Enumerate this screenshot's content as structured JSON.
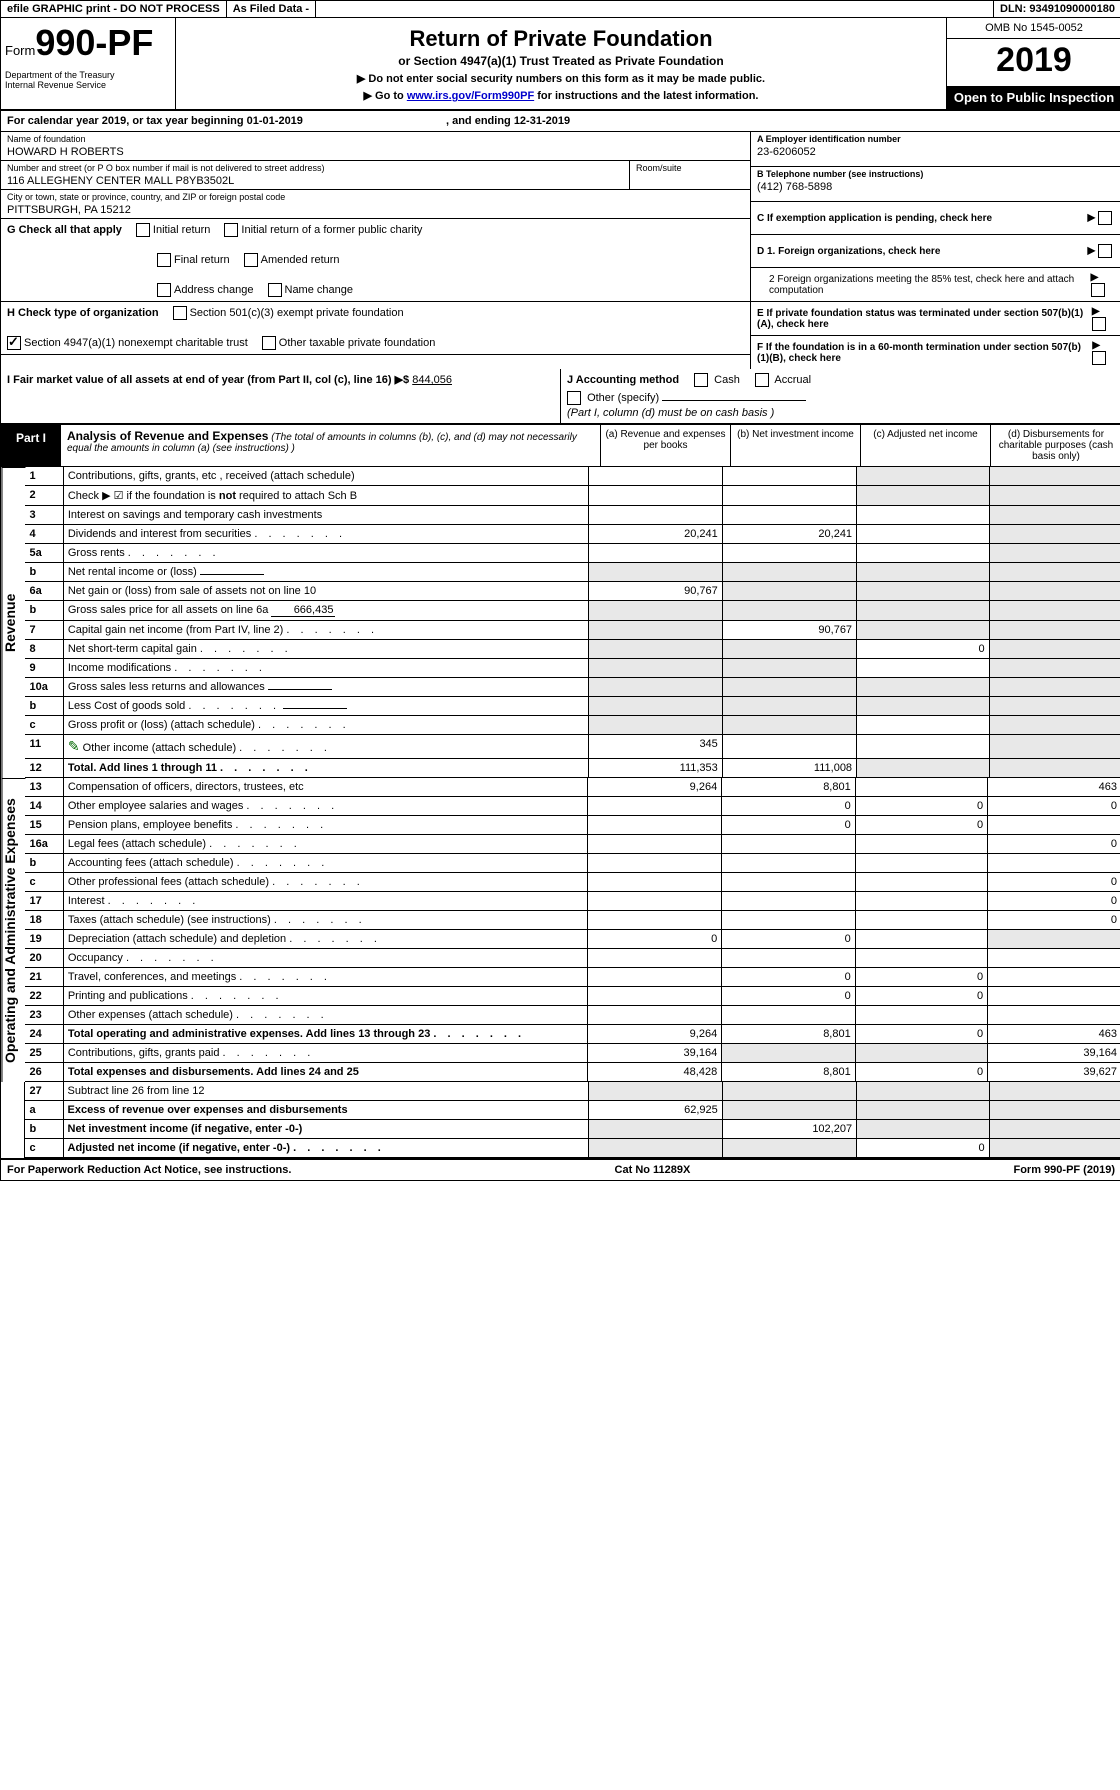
{
  "topbar": {
    "efile": "efile GRAPHIC print - DO NOT PROCESS",
    "asfiled": "As Filed Data -",
    "dln": "DLN: 93491090000180"
  },
  "header": {
    "form_prefix": "Form",
    "form_number": "990-PF",
    "dept": "Department of the Treasury\nInternal Revenue Service",
    "title": "Return of Private Foundation",
    "subtitle": "or Section 4947(a)(1) Trust Treated as Private Foundation",
    "instr1": "▶ Do not enter social security numbers on this form as it may be made public.",
    "instr2_pre": "▶ Go to ",
    "instr2_link": "www.irs.gov/Form990PF",
    "instr2_post": " for instructions and the latest information.",
    "omb": "OMB No 1545-0052",
    "year": "2019",
    "open": "Open to Public Inspection"
  },
  "cal": {
    "line": "For calendar year 2019, or tax year beginning 01-01-2019",
    "ending": ", and ending 12-31-2019"
  },
  "info": {
    "name_label": "Name of foundation",
    "name": "HOWARD H ROBERTS",
    "addr_label": "Number and street (or P O  box number if mail is not delivered to street address)",
    "addr": "116 ALLEGHENY CENTER MALL P8YB3502L",
    "room_label": "Room/suite",
    "city_label": "City or town, state or province, country, and ZIP or foreign postal code",
    "city": "PITTSBURGH, PA  15212",
    "a_label": "A Employer identification number",
    "a_value": "23-6206052",
    "b_label": "B Telephone number (see instructions)",
    "b_value": "(412) 768-5898",
    "c_label": "C If exemption application is pending, check here",
    "d1": "D 1. Foreign organizations, check here",
    "d2": "2 Foreign organizations meeting the 85% test, check here and attach computation",
    "e": "E  If private foundation status was terminated under section 507(b)(1)(A), check here",
    "f": "F  If the foundation is in a 60-month termination under section 507(b)(1)(B), check here"
  },
  "g": {
    "label": "G Check all that apply",
    "opts": [
      "Initial return",
      "Initial return of a former public charity",
      "Final return",
      "Amended return",
      "Address change",
      "Name change"
    ]
  },
  "h": {
    "label": "H Check type of organization",
    "opt1": "Section 501(c)(3) exempt private foundation",
    "opt2": "Section 4947(a)(1) nonexempt charitable trust",
    "opt3": "Other taxable private foundation"
  },
  "i": {
    "label": "I Fair market value of all assets at end of year (from Part II, col (c), line 16) ▶$",
    "value": "844,056"
  },
  "j": {
    "label": "J Accounting method",
    "cash": "Cash",
    "accrual": "Accrual",
    "other": "Other (specify)",
    "note": "(Part I, column (d) must be on cash basis )"
  },
  "part1": {
    "label": "Part I",
    "title": "Analysis of Revenue and Expenses",
    "desc": "(The total of amounts in columns (b), (c), and (d) may not necessarily equal the amounts in column (a) (see instructions) )",
    "col_a": "(a)   Revenue and expenses per books",
    "col_b": "(b)  Net investment income",
    "col_c": "(c)  Adjusted net income",
    "col_d": "(d)  Disbursements for charitable purposes (cash basis only)"
  },
  "side": {
    "revenue": "Revenue",
    "expenses": "Operating and Administrative Expenses"
  },
  "rows": [
    {
      "n": "1",
      "d": "Contributions, gifts, grants, etc , received (attach schedule)",
      "a": "",
      "b": "",
      "c": "",
      "dd": "",
      "cs": true,
      "ds": true
    },
    {
      "n": "2",
      "d": "Check ▶ ☑ if the foundation is not required to attach Sch B",
      "a": "",
      "b": "",
      "c": "",
      "dd": "",
      "cs": true,
      "ds": true,
      "bold_not": true
    },
    {
      "n": "3",
      "d": "Interest on savings and temporary cash investments",
      "a": "",
      "b": "",
      "c": "",
      "dd": "",
      "ds": true
    },
    {
      "n": "4",
      "d": "Dividends and interest from securities",
      "a": "20,241",
      "b": "20,241",
      "c": "",
      "dd": "",
      "ds": true,
      "dots": true
    },
    {
      "n": "5a",
      "d": "Gross rents",
      "a": "",
      "b": "",
      "c": "",
      "dd": "",
      "ds": true,
      "dots": true
    },
    {
      "n": "b",
      "d": "Net rental income or (loss)",
      "a": "",
      "b": "",
      "c": "",
      "dd": "",
      "as": true,
      "bs": true,
      "cs": true,
      "ds": true,
      "inline": true
    },
    {
      "n": "6a",
      "d": "Net gain or (loss) from sale of assets not on line 10",
      "a": "90,767",
      "b": "",
      "c": "",
      "dd": "",
      "bs": true,
      "cs": true,
      "ds": true
    },
    {
      "n": "b",
      "d": "Gross sales price for all assets on line 6a",
      "a": "",
      "b": "",
      "c": "",
      "dd": "",
      "as": true,
      "bs": true,
      "cs": true,
      "ds": true,
      "inline": true,
      "inline_val": "666,435"
    },
    {
      "n": "7",
      "d": "Capital gain net income (from Part IV, line 2)",
      "a": "",
      "b": "90,767",
      "c": "",
      "dd": "",
      "as": true,
      "cs": true,
      "ds": true,
      "dots": true
    },
    {
      "n": "8",
      "d": "Net short-term capital gain",
      "a": "",
      "b": "",
      "c": "0",
      "dd": "",
      "as": true,
      "bs": true,
      "ds": true,
      "dots": true
    },
    {
      "n": "9",
      "d": "Income modifications",
      "a": "",
      "b": "",
      "c": "",
      "dd": "",
      "as": true,
      "bs": true,
      "ds": true,
      "dots": true
    },
    {
      "n": "10a",
      "d": "Gross sales less returns and allowances",
      "a": "",
      "b": "",
      "c": "",
      "dd": "",
      "as": true,
      "bs": true,
      "cs": true,
      "ds": true,
      "inline": true
    },
    {
      "n": "b",
      "d": "Less  Cost of goods sold",
      "a": "",
      "b": "",
      "c": "",
      "dd": "",
      "as": true,
      "bs": true,
      "cs": true,
      "ds": true,
      "inline": true,
      "dots": true
    },
    {
      "n": "c",
      "d": "Gross profit or (loss) (attach schedule)",
      "a": "",
      "b": "",
      "c": "",
      "dd": "",
      "as": true,
      "bs": true,
      "ds": true,
      "dots": true
    },
    {
      "n": "11",
      "d": "Other income (attach schedule)",
      "a": "345",
      "b": "",
      "c": "",
      "dd": "",
      "ds": true,
      "dots": true,
      "icon": true
    },
    {
      "n": "12",
      "d": "Total. Add lines 1 through 11",
      "a": "111,353",
      "b": "111,008",
      "c": "",
      "dd": "",
      "ds": true,
      "cs": true,
      "bold": true,
      "dots": true
    }
  ],
  "exp_rows": [
    {
      "n": "13",
      "d": "Compensation of officers, directors, trustees, etc",
      "a": "9,264",
      "b": "8,801",
      "c": "",
      "dd": "463"
    },
    {
      "n": "14",
      "d": "Other employee salaries and wages",
      "a": "",
      "b": "0",
      "c": "0",
      "dd": "0",
      "dots": true
    },
    {
      "n": "15",
      "d": "Pension plans, employee benefits",
      "a": "",
      "b": "0",
      "c": "0",
      "dd": "",
      "dots": true
    },
    {
      "n": "16a",
      "d": "Legal fees (attach schedule)",
      "a": "",
      "b": "",
      "c": "",
      "dd": "0",
      "dots": true
    },
    {
      "n": "b",
      "d": "Accounting fees (attach schedule)",
      "a": "",
      "b": "",
      "c": "",
      "dd": "",
      "dots": true
    },
    {
      "n": "c",
      "d": "Other professional fees (attach schedule)",
      "a": "",
      "b": "",
      "c": "",
      "dd": "0",
      "dots": true
    },
    {
      "n": "17",
      "d": "Interest",
      "a": "",
      "b": "",
      "c": "",
      "dd": "0",
      "dots": true
    },
    {
      "n": "18",
      "d": "Taxes (attach schedule) (see instructions)",
      "a": "",
      "b": "",
      "c": "",
      "dd": "0",
      "dots": true
    },
    {
      "n": "19",
      "d": "Depreciation (attach schedule) and depletion",
      "a": "0",
      "b": "0",
      "c": "",
      "dd": "",
      "ds": true,
      "dots": true
    },
    {
      "n": "20",
      "d": "Occupancy",
      "a": "",
      "b": "",
      "c": "",
      "dd": "",
      "dots": true
    },
    {
      "n": "21",
      "d": "Travel, conferences, and meetings",
      "a": "",
      "b": "0",
      "c": "0",
      "dd": "",
      "dots": true
    },
    {
      "n": "22",
      "d": "Printing and publications",
      "a": "",
      "b": "0",
      "c": "0",
      "dd": "",
      "dots": true
    },
    {
      "n": "23",
      "d": "Other expenses (attach schedule)",
      "a": "",
      "b": "",
      "c": "",
      "dd": "",
      "dots": true
    },
    {
      "n": "24",
      "d": "Total operating and administrative expenses. Add lines 13 through 23",
      "a": "9,264",
      "b": "8,801",
      "c": "0",
      "dd": "463",
      "bold": true,
      "dots": true
    },
    {
      "n": "25",
      "d": "Contributions, gifts, grants paid",
      "a": "39,164",
      "b": "",
      "c": "",
      "dd": "39,164",
      "bs": true,
      "cs": true,
      "dots": true
    },
    {
      "n": "26",
      "d": "Total expenses and disbursements. Add lines 24 and 25",
      "a": "48,428",
      "b": "8,801",
      "c": "0",
      "dd": "39,627",
      "bold": true
    }
  ],
  "net_rows": [
    {
      "n": "27",
      "d": "Subtract line 26 from line 12",
      "a": "",
      "b": "",
      "c": "",
      "dd": "",
      "as": true,
      "bs": true,
      "cs": true,
      "ds": true
    },
    {
      "n": "a",
      "d": "Excess of revenue over expenses and disbursements",
      "a": "62,925",
      "b": "",
      "c": "",
      "dd": "",
      "bs": true,
      "cs": true,
      "ds": true,
      "bold": true
    },
    {
      "n": "b",
      "d": "Net investment income (if negative, enter -0-)",
      "a": "",
      "b": "102,207",
      "c": "",
      "dd": "",
      "as": true,
      "cs": true,
      "ds": true,
      "bold": true
    },
    {
      "n": "c",
      "d": "Adjusted net income (if negative, enter -0-)",
      "a": "",
      "b": "",
      "c": "0",
      "dd": "",
      "as": true,
      "bs": true,
      "ds": true,
      "bold": true,
      "dots": true
    }
  ],
  "footer": {
    "left": "For Paperwork Reduction Act Notice, see instructions.",
    "center": "Cat No  11289X",
    "right": "Form 990-PF (2019)"
  }
}
